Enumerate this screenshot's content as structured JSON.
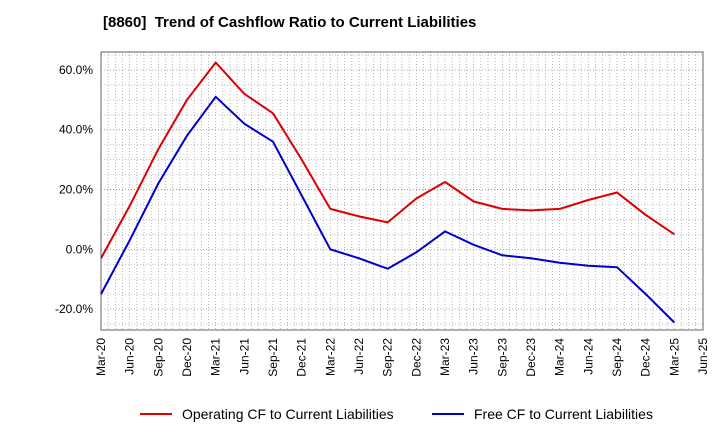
{
  "chart_data": {
    "type": "line",
    "title": "[8860]  Trend of Cashflow Ratio to Current Liabilities",
    "xlabel": "",
    "ylabel": "",
    "x": [
      "Mar-20",
      "Jun-20",
      "Sep-20",
      "Dec-20",
      "Mar-21",
      "Jun-21",
      "Sep-21",
      "Dec-21",
      "Mar-22",
      "Jun-22",
      "Sep-22",
      "Dec-22",
      "Mar-23",
      "Jun-23",
      "Sep-23",
      "Dec-23",
      "Mar-24",
      "Jun-24",
      "Sep-24",
      "Dec-24",
      "Mar-25",
      "Jun-25"
    ],
    "ylim": [
      -27,
      66
    ],
    "yticks": [
      -20,
      0,
      20,
      40,
      60
    ],
    "ytick_labels": [
      "-20.0%",
      "0.0%",
      "20.0%",
      "40.0%",
      "60.0%"
    ],
    "grid": true,
    "legend_position": "bottom",
    "series": [
      {
        "name": "Operating CF to Current Liabilities",
        "color": "#dd0000",
        "values": [
          -3.0,
          14.5,
          33.5,
          50.0,
          62.5,
          52.0,
          45.5,
          30.0,
          13.5,
          11.0,
          9.0,
          17.0,
          22.5,
          16.0,
          13.5,
          13.0,
          13.5,
          16.5,
          19.0,
          11.5,
          5.0,
          null
        ]
      },
      {
        "name": "Free CF to Current Liabilities",
        "color": "#0000cc",
        "values": [
          -15.0,
          3.0,
          22.0,
          38.0,
          51.0,
          42.0,
          36.0,
          18.0,
          0.0,
          -3.0,
          -6.5,
          -1.0,
          6.0,
          1.5,
          -2.0,
          -3.0,
          -4.5,
          -5.5,
          -6.0,
          -15.0,
          -24.5,
          null
        ]
      }
    ]
  }
}
